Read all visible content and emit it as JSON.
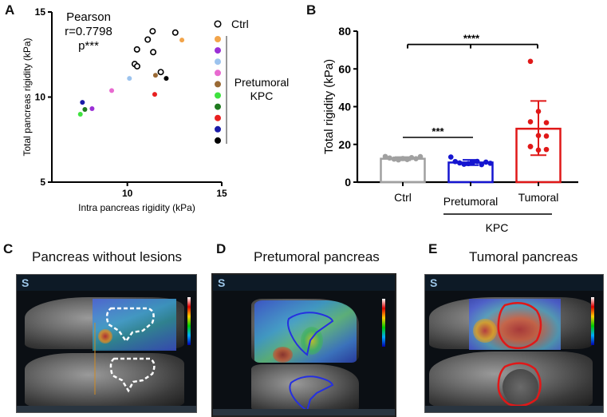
{
  "panels": {
    "A": {
      "letter": "A"
    },
    "B": {
      "letter": "B"
    },
    "C": {
      "letter": "C",
      "title": "Pancreas without lesions"
    },
    "D": {
      "letter": "D",
      "title": "Pretumoral pancreas"
    },
    "E": {
      "letter": "E",
      "title": "Tumoral pancreas"
    }
  },
  "chart_data": [
    {
      "type": "scatter",
      "xlabel": "Intra pancreas rigidity (kPa)",
      "ylabel": "Total pancreas rigidity (kPa)",
      "xlim": [
        6,
        15
      ],
      "ylim": [
        5,
        15
      ],
      "xticks": [
        "10",
        "15"
      ],
      "yticks": [
        "5",
        "10",
        "15"
      ],
      "annotation": [
        "Pearson",
        "r=0.7798",
        "p***"
      ],
      "legend": {
        "ctrl_label": "Ctrl",
        "group_label_1": "Pretumoral",
        "group_label_2": "KPC",
        "placement": "right"
      },
      "series": [
        {
          "name": "Ctrl",
          "style": "open",
          "color": "#000000",
          "points": [
            [
              11.34,
              13.87
            ],
            [
              11.08,
              13.38
            ],
            [
              10.51,
              12.8
            ],
            [
              11.37,
              12.64
            ],
            [
              10.39,
              11.94
            ],
            [
              10.52,
              11.81
            ],
            [
              11.77,
              11.47
            ],
            [
              12.54,
              13.79
            ]
          ]
        },
        {
          "name": "Pretumoral KPC",
          "style": "filled",
          "points": [
            {
              "x": 12.89,
              "y": 13.35,
              "color": "#f2a44a"
            },
            {
              "x": 8.13,
              "y": 9.32,
              "color": "#9b2fd6"
            },
            {
              "x": 10.11,
              "y": 11.1,
              "color": "#9cc3ee"
            },
            {
              "x": 9.17,
              "y": 10.38,
              "color": "#e86ad0"
            },
            {
              "x": 11.49,
              "y": 11.28,
              "color": "#9a6a35"
            },
            {
              "x": 7.51,
              "y": 8.99,
              "color": "#3ee23e"
            },
            {
              "x": 7.75,
              "y": 9.27,
              "color": "#1f7a1f"
            },
            {
              "x": 11.45,
              "y": 10.16,
              "color": "#e82020"
            },
            {
              "x": 7.62,
              "y": 9.69,
              "color": "#1a1aa8"
            },
            {
              "x": 12.06,
              "y": 11.1,
              "color": "#000000"
            }
          ]
        }
      ]
    },
    {
      "type": "bar",
      "ylabel": "Total rigidity (kPa)",
      "ylim": [
        0,
        80
      ],
      "yticks": [
        "0",
        "20",
        "40",
        "60",
        "80"
      ],
      "categories": [
        "Ctrl",
        "Pretumoral",
        "Tumoral"
      ],
      "group_label": "KPC",
      "series": [
        {
          "name": "Ctrl",
          "color": "#a0a0a0",
          "mean": 12.4,
          "sd_low": 11.6,
          "sd_high": 13.3,
          "points": [
            13.6,
            12.8,
            12.2,
            11.8,
            12.5,
            12.0,
            13.0,
            12.4,
            13.5
          ]
        },
        {
          "name": "Pretumoral",
          "color": "#1515d0",
          "mean": 10.4,
          "sd_low": 9.0,
          "sd_high": 11.8,
          "points": [
            13.3,
            10.9,
            10.2,
            9.5,
            9.8,
            10.4,
            11.0,
            9.3,
            10.6,
            10.0
          ]
        },
        {
          "name": "Tumoral",
          "color": "#e01818",
          "mean": 28.3,
          "sd_low": 14.3,
          "sd_high": 43.0,
          "points": [
            64,
            37.5,
            31.5,
            32,
            24.7,
            24.4,
            18.8,
            17,
            17.3,
            18.9
          ]
        }
      ],
      "significance": [
        {
          "label": "***",
          "between": [
            "Ctrl",
            "Pretumoral"
          ],
          "y": 25
        },
        {
          "label": "****",
          "between": [
            "Ctrl",
            "Pretumoral",
            "Tumoral"
          ],
          "y": 70
        }
      ]
    }
  ]
}
